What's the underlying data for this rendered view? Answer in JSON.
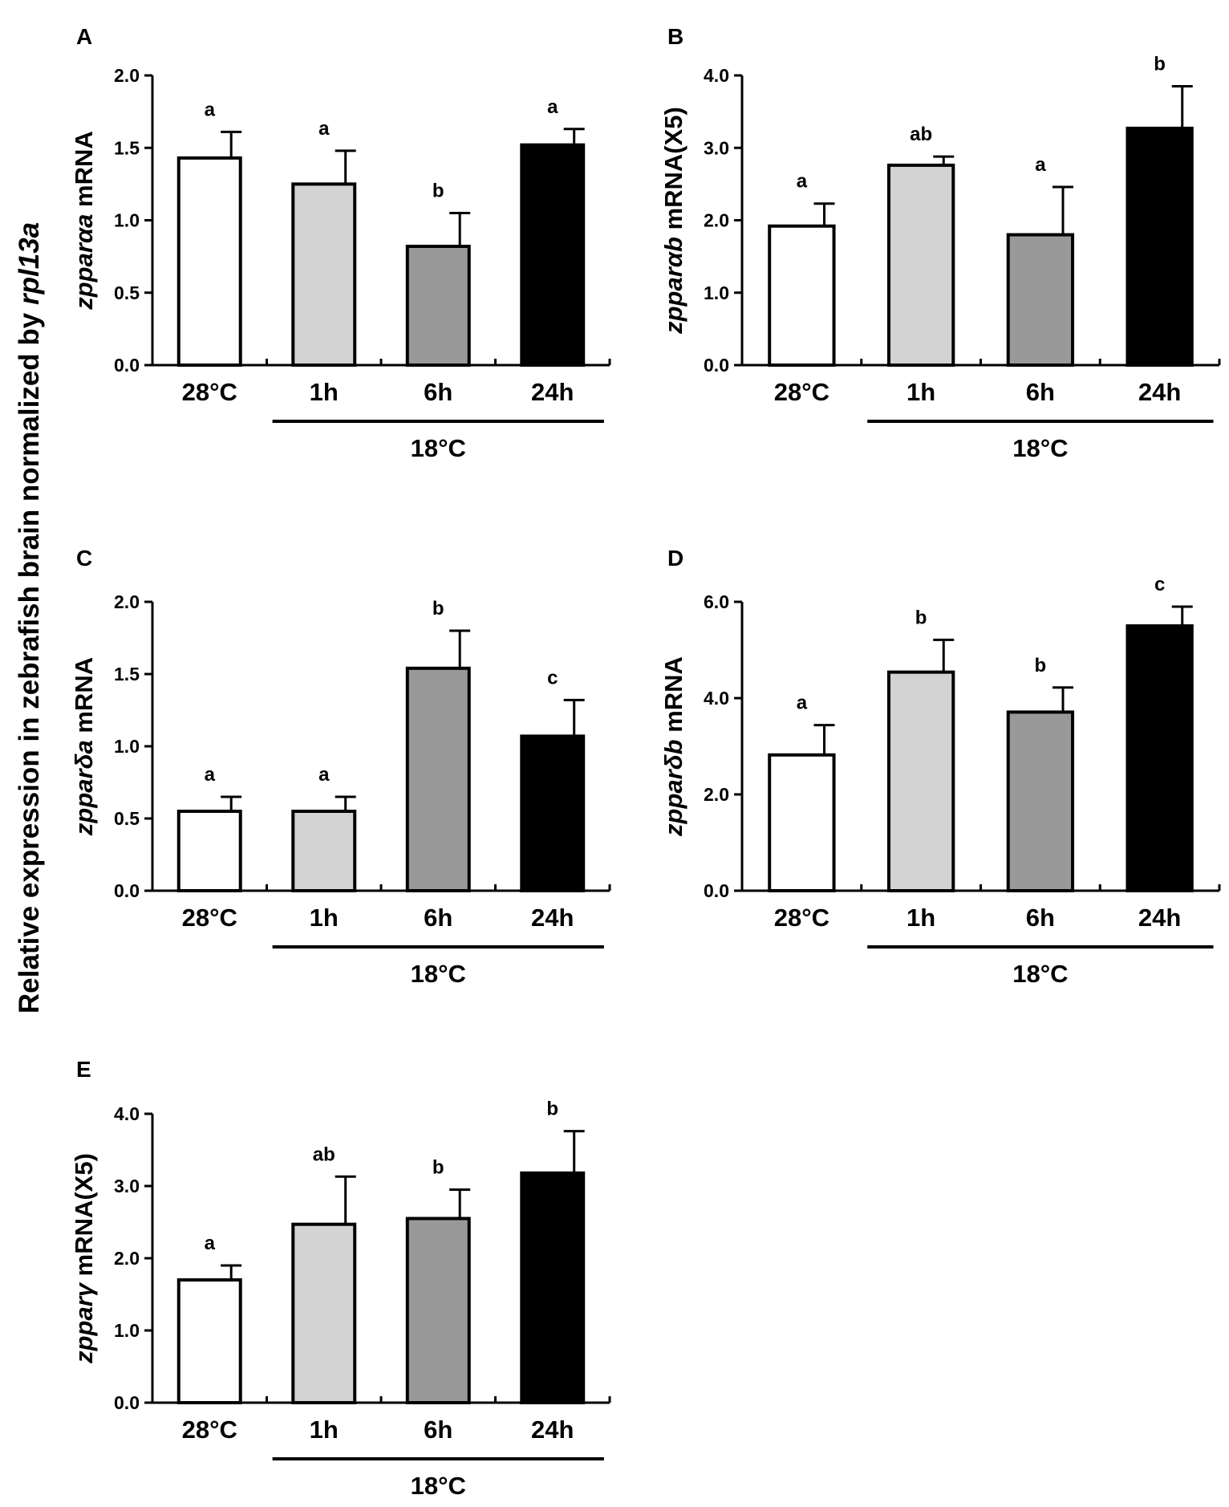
{
  "global_ylabel": {
    "text": "Relative expression in zebrafish brain normalized by ",
    "italic_part": "rpl13a"
  },
  "chart_data": [
    {
      "type": "bar",
      "panel": "A",
      "categories": [
        "28°C",
        "1h",
        "6h",
        "24h"
      ],
      "group_label": "18°C",
      "ylabel_italic": "zpparαa",
      "ylabel_rest": " mRNA",
      "ylim": [
        0,
        2.0
      ],
      "ticks": [
        "0.0",
        "0.5",
        "1.0",
        "1.5",
        "2.0"
      ],
      "tick_values": [
        0,
        0.5,
        1.0,
        1.5,
        2.0
      ],
      "values": [
        1.43,
        1.25,
        0.82,
        1.52
      ],
      "errors": [
        0.18,
        0.23,
        0.23,
        0.11
      ],
      "significance": [
        "a",
        "a",
        "b",
        "a"
      ],
      "colors": [
        "#ffffff",
        "#d3d3d3",
        "#999999",
        "#000000"
      ]
    },
    {
      "type": "bar",
      "panel": "B",
      "categories": [
        "28°C",
        "1h",
        "6h",
        "24h"
      ],
      "group_label": "18°C",
      "ylabel_italic": "zpparαb",
      "ylabel_rest": " mRNA(X5)",
      "ylim": [
        0,
        4.0
      ],
      "ticks": [
        "0.0",
        "1.0",
        "2.0",
        "3.0",
        "4.0"
      ],
      "tick_values": [
        0,
        1.0,
        2.0,
        3.0,
        4.0
      ],
      "values": [
        1.92,
        2.76,
        1.8,
        3.27
      ],
      "errors": [
        0.31,
        0.12,
        0.66,
        0.58
      ],
      "significance": [
        "a",
        "ab",
        "a",
        "b"
      ],
      "colors": [
        "#ffffff",
        "#d3d3d3",
        "#999999",
        "#000000"
      ]
    },
    {
      "type": "bar",
      "panel": "C",
      "categories": [
        "28°C",
        "1h",
        "6h",
        "24h"
      ],
      "group_label": "18°C",
      "ylabel_italic": "zpparδa",
      "ylabel_rest": " mRNA",
      "ylim": [
        0,
        2.0
      ],
      "ticks": [
        "0.0",
        "0.5",
        "1.0",
        "1.5",
        "2.0"
      ],
      "tick_values": [
        0,
        0.5,
        1.0,
        1.5,
        2.0
      ],
      "values": [
        0.55,
        0.55,
        1.54,
        1.07
      ],
      "errors": [
        0.1,
        0.1,
        0.26,
        0.25
      ],
      "significance": [
        "a",
        "a",
        "b",
        "c"
      ],
      "colors": [
        "#ffffff",
        "#d3d3d3",
        "#999999",
        "#000000"
      ]
    },
    {
      "type": "bar",
      "panel": "D",
      "categories": [
        "28°C",
        "1h",
        "6h",
        "24h"
      ],
      "group_label": "18°C",
      "ylabel_italic": "zpparδb",
      "ylabel_rest": " mRNA",
      "ylim": [
        0,
        6.0
      ],
      "ticks": [
        "0.0",
        "2.0",
        "4.0",
        "6.0"
      ],
      "tick_values": [
        0,
        2.0,
        4.0,
        6.0
      ],
      "values": [
        2.82,
        4.54,
        3.71,
        5.5
      ],
      "errors": [
        0.62,
        0.67,
        0.51,
        0.4
      ],
      "significance": [
        "a",
        "b",
        "b",
        "c"
      ],
      "colors": [
        "#ffffff",
        "#d3d3d3",
        "#999999",
        "#000000"
      ]
    },
    {
      "type": "bar",
      "panel": "E",
      "categories": [
        "28°C",
        "1h",
        "6h",
        "24h"
      ],
      "group_label": "18°C",
      "ylabel_italic": "zpparγ",
      "ylabel_rest": " mRNA(X5)",
      "ylim": [
        0,
        4.0
      ],
      "ticks": [
        "0.0",
        "1.0",
        "2.0",
        "3.0",
        "4.0"
      ],
      "tick_values": [
        0,
        1.0,
        2.0,
        3.0,
        4.0
      ],
      "values": [
        1.7,
        2.47,
        2.55,
        3.18
      ],
      "errors": [
        0.2,
        0.66,
        0.4,
        0.58
      ],
      "significance": [
        "a",
        "ab",
        "b",
        "b"
      ],
      "colors": [
        "#ffffff",
        "#d3d3d3",
        "#999999",
        "#000000"
      ]
    }
  ]
}
